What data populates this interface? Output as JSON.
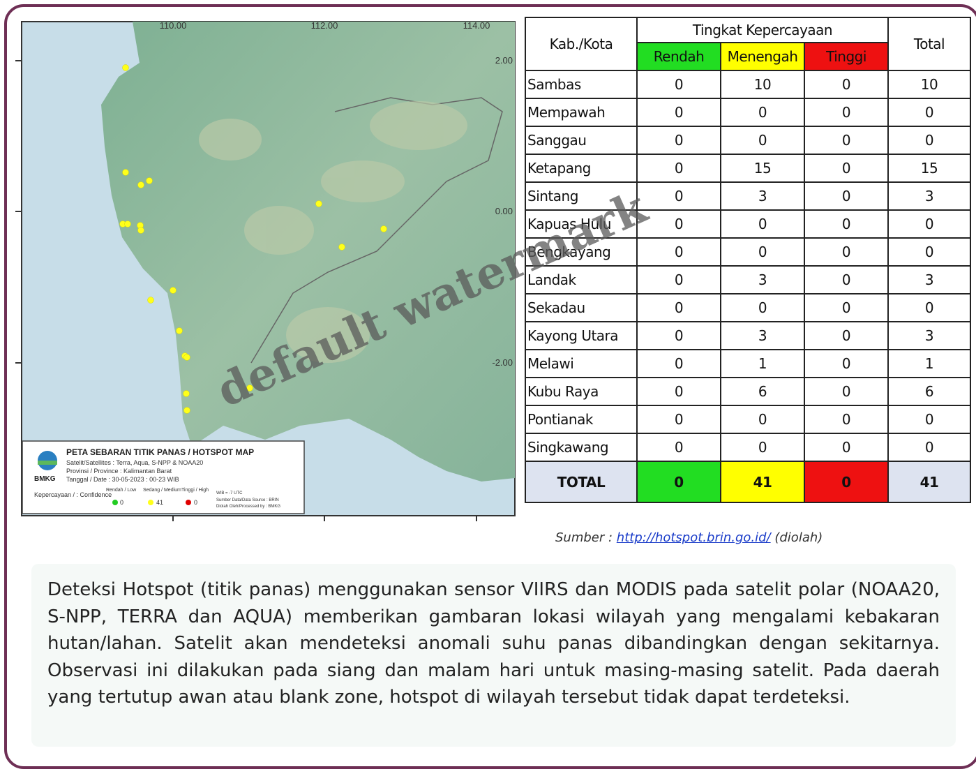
{
  "map": {
    "lon_labels": [
      "110.00",
      "112.00",
      "114.00"
    ],
    "lat_labels": [
      "2.00",
      "0.00",
      "-2.00"
    ],
    "legend": {
      "title": "PETA SEBARAN TITIK PANAS / HOTSPOT MAP",
      "satellites": "Satelit/Satellites : Terra, Aqua, S-NPP & NOAA20",
      "province": "Provinsi / Province : Kalimantan Barat",
      "date": "Tanggal / Date : 30-05-2023 : 00-23 WIB",
      "logo": "BMKG",
      "confidence_label": "Kepercayaan / : Confidence",
      "low": "Rendah / Low",
      "medium": "Sedang / Medium",
      "high": "Tinggi / High",
      "low_count": 0,
      "medium_count": 41,
      "high_count": 0,
      "timezone": "WIB = -7 UTC",
      "data_source": "Sumber Data/Data Source : BRIN",
      "processed_by": "Diolah Oleh/Processed by : BMKG"
    }
  },
  "table": {
    "headers": {
      "region": "Kab./Kota",
      "confidence": "Tingkat Kepercayaan",
      "low": "Rendah",
      "medium": "Menengah",
      "high": "Tinggi",
      "total": "Total"
    },
    "rows": [
      [
        "Sambas",
        0,
        10,
        0,
        10
      ],
      [
        "Mempawah",
        0,
        0,
        0,
        0
      ],
      [
        "Sanggau",
        0,
        0,
        0,
        0
      ],
      [
        "Ketapang",
        0,
        15,
        0,
        15
      ],
      [
        "Sintang",
        0,
        3,
        0,
        3
      ],
      [
        "Kapuas Hulu",
        0,
        0,
        0,
        0
      ],
      [
        "Bengkayang",
        0,
        0,
        0,
        0
      ],
      [
        "Landak",
        0,
        3,
        0,
        3
      ],
      [
        "Sekadau",
        0,
        0,
        0,
        0
      ],
      [
        "Kayong Utara",
        0,
        3,
        0,
        3
      ],
      [
        "Melawi",
        0,
        1,
        0,
        1
      ],
      [
        "Kubu Raya",
        0,
        6,
        0,
        6
      ],
      [
        "Pontianak",
        0,
        0,
        0,
        0
      ],
      [
        "Singkawang",
        0,
        0,
        0,
        0
      ]
    ],
    "total_row": [
      "TOTAL",
      0,
      41,
      0,
      41
    ]
  },
  "source": {
    "label": "Sumber :",
    "link": "http://hotspot.brin.go.id/",
    "note": "(diolah)"
  },
  "paragraph": "Deteksi Hotspot (titik panas) menggunakan sensor VIIRS dan MODIS pada satelit polar (NOAA20, S-NPP, TERRA dan AQUA) memberikan gambaran lokasi wilayah yang mengalami kebakaran hutan/lahan. Satelit akan mendeteksi anomali suhu panas dibandingkan dengan sekitarnya. Observasi ini dilakukan pada siang dan malam hari untuk masing-masing satelit. Pada daerah yang tertutup awan atau blank zone, hotspot di wilayah tersebut tidak dapat terdeteksi.",
  "watermark": "default watermark"
}
